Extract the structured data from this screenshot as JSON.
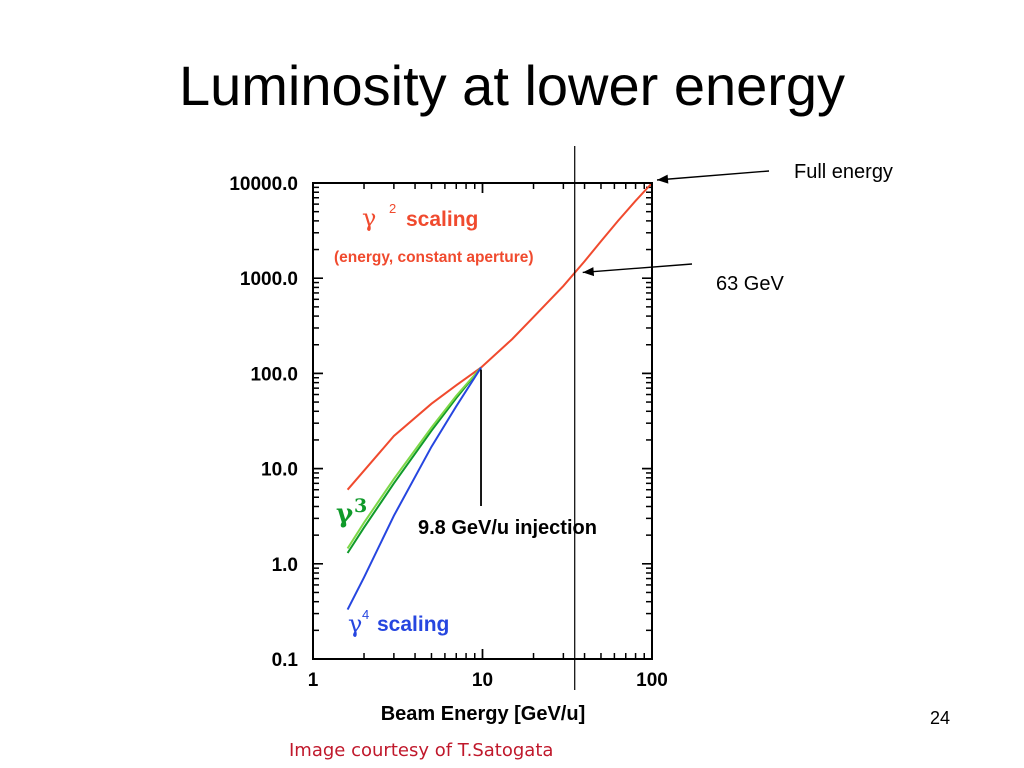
{
  "slide": {
    "title": "Luminosity at lower energy",
    "number": "24",
    "credit": "Image courtesy of T.Satogata"
  },
  "chart_data": {
    "type": "line",
    "x_scale": "log",
    "y_scale": "log",
    "xlim": [
      1,
      100
    ],
    "ylim": [
      0.1,
      10000
    ],
    "xlabel": "Beam Energy [GeV/u]",
    "ylabel": "",
    "x_ticks": [
      "1",
      "10",
      "100"
    ],
    "y_ticks": [
      "0.1",
      "1.0",
      "10.0",
      "100.0",
      "1000.0",
      "10000.0"
    ],
    "grid": false,
    "series": [
      {
        "key": "gamma2",
        "color": "#f04a2e",
        "x": [
          1.6,
          2,
          3,
          5,
          7,
          9.8,
          15,
          20,
          30,
          40,
          50,
          63,
          80,
          100
        ],
        "y": [
          6,
          9.5,
          22,
          48,
          75,
          115,
          230,
          390,
          830,
          1500,
          2450,
          4000,
          6500,
          10000
        ]
      },
      {
        "key": "gamma3-a",
        "color": "#0f9a2a",
        "x": [
          1.6,
          2,
          3,
          5,
          7,
          9.8
        ],
        "y": [
          1.3,
          2.4,
          7,
          25,
          55,
          115
        ]
      },
      {
        "key": "gamma3-b",
        "color": "#7ed848",
        "x": [
          1.6,
          2,
          3,
          5,
          7,
          9.8
        ],
        "y": [
          1.45,
          2.7,
          7.8,
          27,
          58,
          115
        ]
      },
      {
        "key": "gamma4",
        "color": "#2646e0",
        "x": [
          1.6,
          2,
          3,
          5,
          7,
          9.8
        ],
        "y": [
          0.33,
          0.72,
          3.2,
          17,
          45,
          115
        ]
      }
    ],
    "annotations": {
      "gamma2_label": "γ",
      "gamma2_sup": "2",
      "gamma2_word": "scaling",
      "gamma2_note": "(energy, constant aperture)",
      "gamma3_label": "γ",
      "gamma3_sup": "3",
      "gamma4_label": "γ",
      "gamma4_sup": "4",
      "gamma4_word": "scaling",
      "injection": "9.8 GeV/u injection",
      "full_energy": "Full energy",
      "energy_63": "63 GeV"
    },
    "markers": {
      "injection_x": 9.8,
      "energy_63_x": 35
    },
    "colors": {
      "red": "#f04a2e",
      "green": "#0f9a2a",
      "blue": "#2646e0"
    }
  }
}
